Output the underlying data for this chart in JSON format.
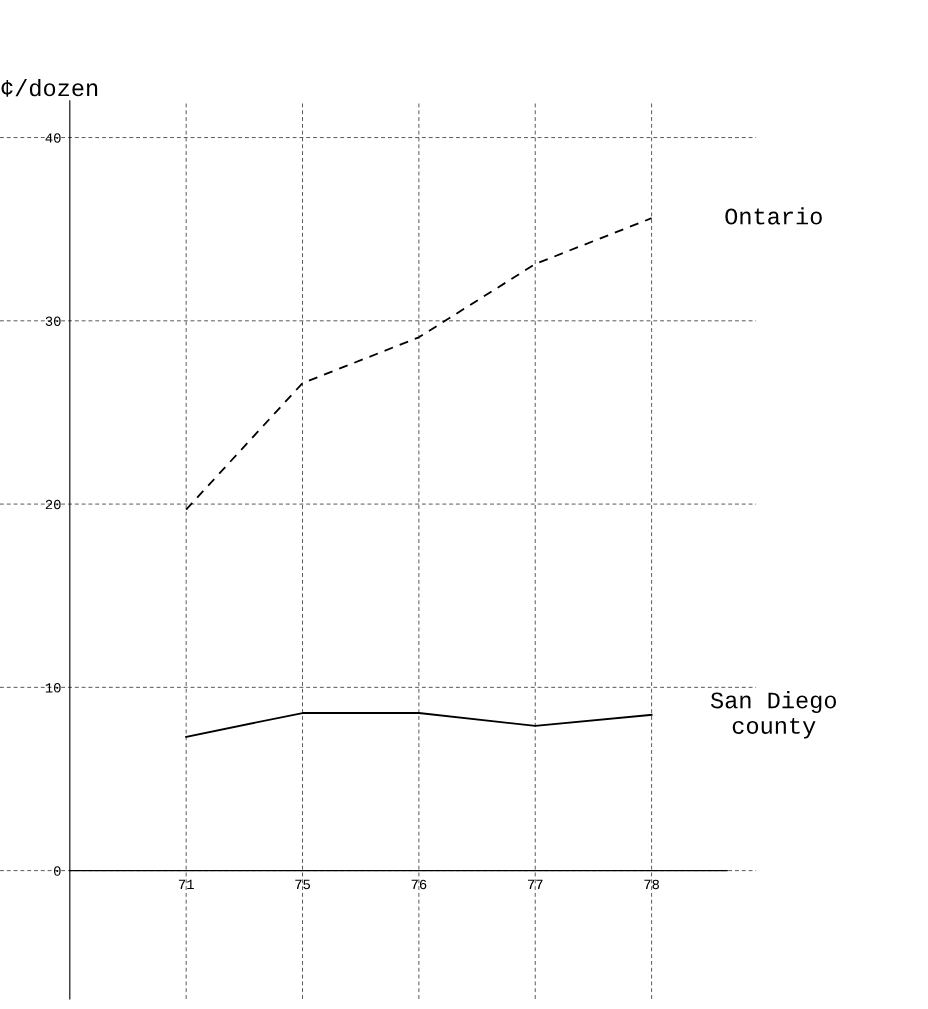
{
  "chart_data": {
    "type": "line",
    "ylabel": "¢/dozen",
    "categories": [
      "71",
      "75",
      "76",
      "77",
      "78"
    ],
    "series": [
      {
        "name": "Ontario",
        "color": "#000000",
        "line_style": "dashed",
        "values": [
          19.7,
          26.6,
          29.1,
          33.1,
          35.6
        ]
      },
      {
        "name": "San Diego\ncounty",
        "color": "#000000",
        "line_style": "solid",
        "values": [
          7.3,
          8.6,
          8.6,
          7.9,
          8.5
        ]
      }
    ],
    "ylim": [
      -7,
      42
    ],
    "yticks": [
      0,
      10,
      20,
      30,
      40
    ],
    "grid": true,
    "legend": false
  }
}
